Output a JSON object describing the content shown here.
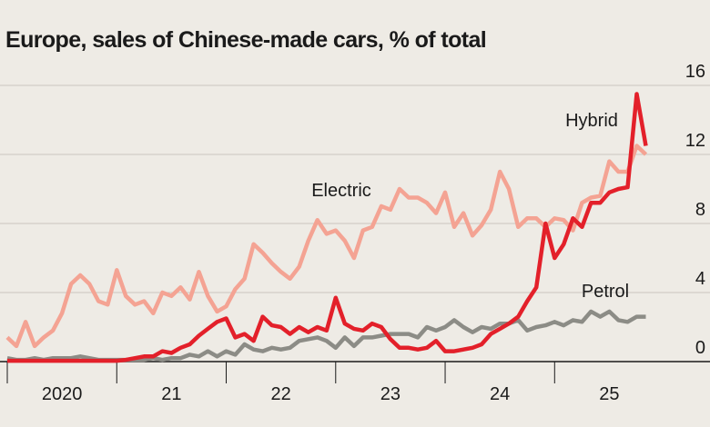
{
  "chart_data": {
    "type": "line",
    "title": "Europe, sales of Chinese-made cars, % of total",
    "x": [
      2020.0,
      2020.083,
      2020.167,
      2020.25,
      2020.333,
      2020.417,
      2020.5,
      2020.583,
      2020.667,
      2020.75,
      2020.833,
      2020.917,
      2021.0,
      2021.083,
      2021.167,
      2021.25,
      2021.333,
      2021.417,
      2021.5,
      2021.583,
      2021.667,
      2021.75,
      2021.833,
      2021.917,
      2022.0,
      2022.083,
      2022.167,
      2022.25,
      2022.333,
      2022.417,
      2022.5,
      2022.583,
      2022.667,
      2022.75,
      2022.833,
      2022.917,
      2023.0,
      2023.083,
      2023.167,
      2023.25,
      2023.333,
      2023.417,
      2023.5,
      2023.583,
      2023.667,
      2023.75,
      2023.833,
      2023.917,
      2024.0,
      2024.083,
      2024.167,
      2024.25,
      2024.333,
      2024.417,
      2024.5,
      2024.583,
      2024.667,
      2024.75,
      2024.833,
      2024.917,
      2025.0,
      2025.083,
      2025.167,
      2025.25,
      2025.333,
      2025.417,
      2025.5,
      2025.583,
      2025.667,
      2025.75,
      2025.833
    ],
    "series": [
      {
        "name": "Electric",
        "color": "#f4a393",
        "values": [
          1.4,
          0.9,
          2.3,
          0.9,
          1.4,
          1.8,
          2.8,
          4.5,
          5.0,
          4.5,
          3.5,
          3.3,
          5.3,
          3.8,
          3.3,
          3.5,
          2.8,
          4.0,
          3.8,
          4.3,
          3.6,
          5.2,
          3.8,
          2.9,
          3.2,
          4.2,
          4.8,
          6.8,
          6.3,
          5.7,
          5.2,
          4.8,
          5.5,
          7.0,
          8.2,
          7.4,
          7.6,
          7.0,
          6.0,
          7.6,
          7.8,
          9.0,
          8.8,
          10.0,
          9.5,
          9.5,
          9.2,
          8.6,
          9.8,
          7.8,
          8.6,
          7.3,
          7.9,
          8.8,
          11.0,
          10.0,
          7.8,
          8.3,
          8.3,
          7.8,
          8.3,
          8.2,
          7.6,
          9.2,
          9.5,
          9.6,
          11.6,
          11.0,
          11.0,
          12.5,
          12.0
        ]
      },
      {
        "name": "Petrol",
        "color": "#8c8c86",
        "values": [
          0.2,
          0.1,
          0.1,
          0.2,
          0.1,
          0.2,
          0.2,
          0.2,
          0.3,
          0.2,
          0.1,
          0.1,
          0.1,
          0.1,
          0.1,
          0.1,
          0.2,
          0.1,
          0.2,
          0.2,
          0.4,
          0.3,
          0.6,
          0.3,
          0.6,
          0.4,
          1.0,
          0.7,
          0.6,
          0.8,
          0.7,
          0.8,
          1.2,
          1.3,
          1.4,
          1.2,
          0.8,
          1.4,
          0.9,
          1.4,
          1.4,
          1.5,
          1.6,
          1.6,
          1.6,
          1.4,
          2.0,
          1.8,
          2.0,
          2.4,
          2.0,
          1.7,
          2.0,
          1.9,
          2.2,
          2.2,
          2.4,
          1.8,
          2.0,
          2.1,
          2.3,
          2.1,
          2.4,
          2.3,
          2.9,
          2.6,
          2.9,
          2.4,
          2.3,
          2.6,
          2.6
        ]
      },
      {
        "name": "Hybrid",
        "color": "#e3202a",
        "values": [
          0.05,
          0.05,
          0.05,
          0.05,
          0.05,
          0.05,
          0.05,
          0.05,
          0.05,
          0.05,
          0.05,
          0.05,
          0.05,
          0.1,
          0.2,
          0.3,
          0.3,
          0.6,
          0.5,
          0.8,
          1.0,
          1.5,
          1.9,
          2.3,
          2.5,
          1.4,
          1.6,
          1.2,
          2.6,
          2.1,
          2.0,
          1.6,
          2.0,
          1.7,
          2.0,
          1.8,
          3.7,
          2.2,
          1.9,
          1.8,
          2.2,
          2.0,
          1.3,
          0.8,
          0.8,
          0.7,
          0.8,
          1.2,
          0.6,
          0.6,
          0.7,
          0.8,
          1.0,
          1.6,
          1.9,
          2.2,
          2.6,
          3.5,
          4.3,
          8.0,
          6.0,
          6.8,
          8.3,
          7.8,
          9.2,
          9.2,
          9.8,
          10.0,
          10.1,
          15.5,
          12.5
        ]
      }
    ],
    "xlim": [
      2020,
      2026.17
    ],
    "xticks": [
      {
        "value": 2020.5,
        "label": "2020"
      },
      {
        "value": 2021.5,
        "label": "21"
      },
      {
        "value": 2022.5,
        "label": "22"
      },
      {
        "value": 2023.5,
        "label": "23"
      },
      {
        "value": 2024.5,
        "label": "24"
      },
      {
        "value": 2025.5,
        "label": "25"
      }
    ],
    "x_boundaries": [
      2020,
      2021,
      2022,
      2023,
      2024,
      2025
    ],
    "ylim": [
      0,
      16
    ],
    "yticks": [
      0,
      4,
      8,
      12,
      16
    ],
    "grid": true
  }
}
